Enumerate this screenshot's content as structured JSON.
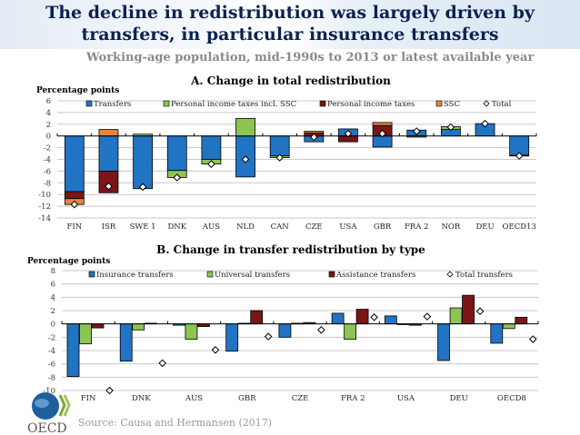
{
  "page": {
    "title_line1": "The decline in redistribution was largely driven by",
    "title_line2": "transfers, in particular insurance transfers",
    "subtitle": "Working-age population, mid-1990s to 2013 or latest available year",
    "source": "Source: Causa and Hermansen (2017)",
    "logo_text": "OECD"
  },
  "chart_data": [
    {
      "type": "bar",
      "stacked": true,
      "title": "A. Change in total redistribution",
      "ylabel": "Percentage points",
      "xlabel": "",
      "ylim": [
        -14,
        6
      ],
      "yticks": [
        6,
        4,
        2,
        0,
        -2,
        -4,
        -6,
        -8,
        -10,
        -12,
        -14
      ],
      "grid": true,
      "legend_position": "top",
      "categories": [
        "FIN",
        "ISR",
        "SWE 1",
        "DNK",
        "AUS",
        "NLD",
        "CAN",
        "CZE",
        "USA",
        "GBR",
        "FRA 2",
        "NOR",
        "DEU",
        "OECD13"
      ],
      "series": [
        {
          "name": "Transfers",
          "color": "#2173C4",
          "values": [
            -9.5,
            -6.0,
            -9.0,
            -5.9,
            -4.0,
            -7.0,
            -3.4,
            -1.0,
            1.2,
            -1.9,
            1.0,
            1.1,
            2.1,
            -3.3
          ]
        },
        {
          "name": "Personal income taxes incl. SSC",
          "color": "#8DC453",
          "values": [
            0,
            0,
            0.3,
            -1.2,
            -0.8,
            3.0,
            -0.3,
            0,
            0,
            0,
            -0.2,
            0.5,
            0,
            -0.1
          ]
        },
        {
          "name": "Personal income taxes",
          "color": "#7B1517",
          "values": [
            -1.2,
            -3.7,
            0,
            0,
            0,
            0,
            0,
            0.5,
            -1.0,
            1.8,
            0,
            0,
            0,
            0
          ]
        },
        {
          "name": "SSC",
          "color": "#E8833A",
          "values": [
            -1.0,
            1.1,
            0,
            0,
            0,
            0,
            0,
            0.3,
            0,
            0.5,
            0,
            0,
            0,
            0
          ]
        }
      ],
      "total": {
        "name": "Total",
        "values": [
          -11.7,
          -8.6,
          -8.7,
          -7.1,
          -4.8,
          -4.0,
          -3.7,
          -0.2,
          0.4,
          0.4,
          0.8,
          1.5,
          2.1,
          -3.4
        ]
      }
    },
    {
      "type": "bar",
      "stacked": false,
      "title": "B. Change in transfer redistribution by type",
      "ylabel": "Percentage points",
      "xlabel": "",
      "ylim": [
        -10,
        8
      ],
      "yticks": [
        8,
        6,
        4,
        2,
        0,
        -2,
        -4,
        -6,
        -8,
        -10
      ],
      "grid": true,
      "legend_position": "top",
      "categories": [
        "FIN",
        "DNK",
        "AUS",
        "GBR",
        "CZE",
        "FRA 2",
        "USA",
        "DEU",
        "OECD8"
      ],
      "series": [
        {
          "name": "Insurance transfers",
          "color": "#2173C4",
          "values": [
            -7.9,
            -5.6,
            -0.2,
            -4.1,
            -2.0,
            1.6,
            1.2,
            -5.5,
            -2.9
          ]
        },
        {
          "name": "Universal transfers",
          "color": "#8DC453",
          "values": [
            -3.0,
            -0.9,
            -2.3,
            0.1,
            0.1,
            -2.3,
            0.0,
            2.4,
            -0.7
          ]
        },
        {
          "name": "Assistance transfers",
          "color": "#7B1517",
          "values": [
            -0.6,
            0.1,
            -0.4,
            2.0,
            0.2,
            2.2,
            -0.2,
            4.3,
            1.0
          ]
        }
      ],
      "total": {
        "name": "Total transfers",
        "values": [
          -10.0,
          -5.9,
          -3.9,
          -1.9,
          -0.9,
          1.0,
          1.1,
          1.9,
          -2.3
        ]
      }
    }
  ]
}
